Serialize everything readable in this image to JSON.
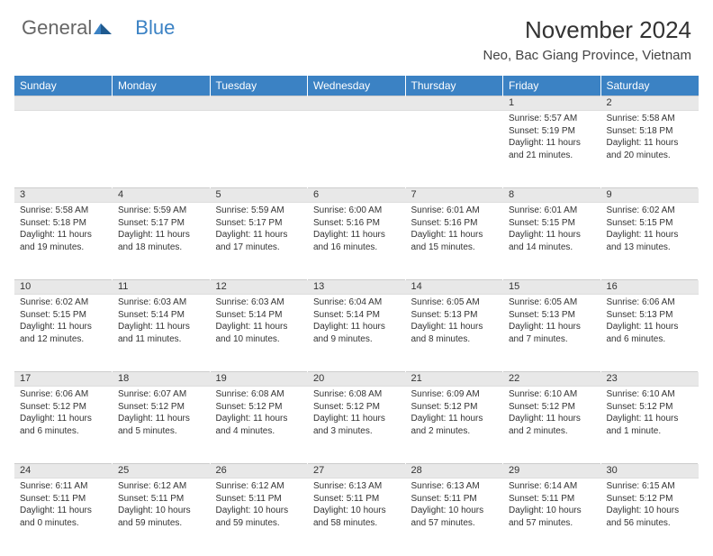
{
  "brand": {
    "part1": "General",
    "part2": "Blue"
  },
  "title": "November 2024",
  "location": "Neo, Bac Giang Province, Vietnam",
  "colors": {
    "header_bg": "#3b82c4",
    "header_text": "#ffffff",
    "daynum_bg": "#e8e8e8",
    "text": "#333333",
    "divider": "#3b82c4",
    "background": "#ffffff"
  },
  "typography": {
    "title_fontsize": 26,
    "location_fontsize": 15,
    "weekday_fontsize": 12,
    "daynum_fontsize": 11,
    "cell_fontsize": 10
  },
  "weekdays": [
    "Sunday",
    "Monday",
    "Tuesday",
    "Wednesday",
    "Thursday",
    "Friday",
    "Saturday"
  ],
  "weeks": [
    [
      null,
      null,
      null,
      null,
      null,
      {
        "day": "1",
        "sunrise": "5:57 AM",
        "sunset": "5:19 PM",
        "daylight": "11 hours and 21 minutes."
      },
      {
        "day": "2",
        "sunrise": "5:58 AM",
        "sunset": "5:18 PM",
        "daylight": "11 hours and 20 minutes."
      }
    ],
    [
      {
        "day": "3",
        "sunrise": "5:58 AM",
        "sunset": "5:18 PM",
        "daylight": "11 hours and 19 minutes."
      },
      {
        "day": "4",
        "sunrise": "5:59 AM",
        "sunset": "5:17 PM",
        "daylight": "11 hours and 18 minutes."
      },
      {
        "day": "5",
        "sunrise": "5:59 AM",
        "sunset": "5:17 PM",
        "daylight": "11 hours and 17 minutes."
      },
      {
        "day": "6",
        "sunrise": "6:00 AM",
        "sunset": "5:16 PM",
        "daylight": "11 hours and 16 minutes."
      },
      {
        "day": "7",
        "sunrise": "6:01 AM",
        "sunset": "5:16 PM",
        "daylight": "11 hours and 15 minutes."
      },
      {
        "day": "8",
        "sunrise": "6:01 AM",
        "sunset": "5:15 PM",
        "daylight": "11 hours and 14 minutes."
      },
      {
        "day": "9",
        "sunrise": "6:02 AM",
        "sunset": "5:15 PM",
        "daylight": "11 hours and 13 minutes."
      }
    ],
    [
      {
        "day": "10",
        "sunrise": "6:02 AM",
        "sunset": "5:15 PM",
        "daylight": "11 hours and 12 minutes."
      },
      {
        "day": "11",
        "sunrise": "6:03 AM",
        "sunset": "5:14 PM",
        "daylight": "11 hours and 11 minutes."
      },
      {
        "day": "12",
        "sunrise": "6:03 AM",
        "sunset": "5:14 PM",
        "daylight": "11 hours and 10 minutes."
      },
      {
        "day": "13",
        "sunrise": "6:04 AM",
        "sunset": "5:14 PM",
        "daylight": "11 hours and 9 minutes."
      },
      {
        "day": "14",
        "sunrise": "6:05 AM",
        "sunset": "5:13 PM",
        "daylight": "11 hours and 8 minutes."
      },
      {
        "day": "15",
        "sunrise": "6:05 AM",
        "sunset": "5:13 PM",
        "daylight": "11 hours and 7 minutes."
      },
      {
        "day": "16",
        "sunrise": "6:06 AM",
        "sunset": "5:13 PM",
        "daylight": "11 hours and 6 minutes."
      }
    ],
    [
      {
        "day": "17",
        "sunrise": "6:06 AM",
        "sunset": "5:12 PM",
        "daylight": "11 hours and 6 minutes."
      },
      {
        "day": "18",
        "sunrise": "6:07 AM",
        "sunset": "5:12 PM",
        "daylight": "11 hours and 5 minutes."
      },
      {
        "day": "19",
        "sunrise": "6:08 AM",
        "sunset": "5:12 PM",
        "daylight": "11 hours and 4 minutes."
      },
      {
        "day": "20",
        "sunrise": "6:08 AM",
        "sunset": "5:12 PM",
        "daylight": "11 hours and 3 minutes."
      },
      {
        "day": "21",
        "sunrise": "6:09 AM",
        "sunset": "5:12 PM",
        "daylight": "11 hours and 2 minutes."
      },
      {
        "day": "22",
        "sunrise": "6:10 AM",
        "sunset": "5:12 PM",
        "daylight": "11 hours and 2 minutes."
      },
      {
        "day": "23",
        "sunrise": "6:10 AM",
        "sunset": "5:12 PM",
        "daylight": "11 hours and 1 minute."
      }
    ],
    [
      {
        "day": "24",
        "sunrise": "6:11 AM",
        "sunset": "5:11 PM",
        "daylight": "11 hours and 0 minutes."
      },
      {
        "day": "25",
        "sunrise": "6:12 AM",
        "sunset": "5:11 PM",
        "daylight": "10 hours and 59 minutes."
      },
      {
        "day": "26",
        "sunrise": "6:12 AM",
        "sunset": "5:11 PM",
        "daylight": "10 hours and 59 minutes."
      },
      {
        "day": "27",
        "sunrise": "6:13 AM",
        "sunset": "5:11 PM",
        "daylight": "10 hours and 58 minutes."
      },
      {
        "day": "28",
        "sunrise": "6:13 AM",
        "sunset": "5:11 PM",
        "daylight": "10 hours and 57 minutes."
      },
      {
        "day": "29",
        "sunrise": "6:14 AM",
        "sunset": "5:11 PM",
        "daylight": "10 hours and 57 minutes."
      },
      {
        "day": "30",
        "sunrise": "6:15 AM",
        "sunset": "5:12 PM",
        "daylight": "10 hours and 56 minutes."
      }
    ]
  ],
  "labels": {
    "sunrise": "Sunrise: ",
    "sunset": "Sunset: ",
    "daylight": "Daylight: "
  }
}
